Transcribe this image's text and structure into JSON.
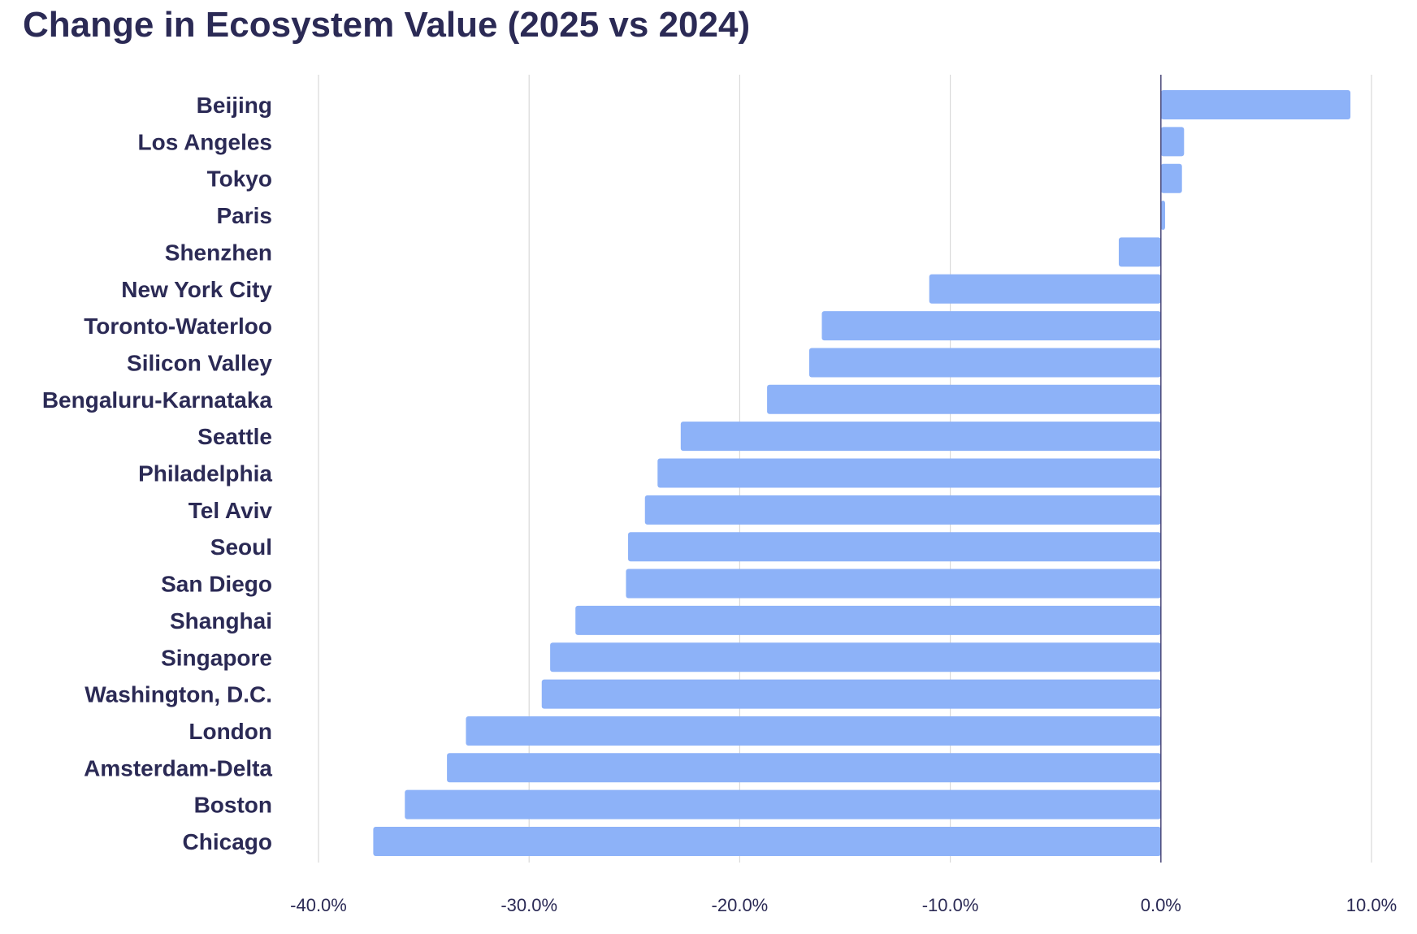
{
  "chart_data": {
    "type": "bar",
    "orientation": "horizontal",
    "title": "Change in Ecosystem Value (2025 vs 2024)",
    "xlabel": "",
    "ylabel": "",
    "xlim": [
      -40,
      10
    ],
    "x_ticks": [
      -40,
      -30,
      -20,
      -10,
      0,
      10
    ],
    "x_tick_labels": [
      "-40.0%",
      "-30.0%",
      "-20.0%",
      "-10.0%",
      "0.0%",
      "10.0%"
    ],
    "grid": "vertical",
    "legend": "none",
    "bar_color": "#8db2f8",
    "categories": [
      "Beijing",
      "Los Angeles",
      "Tokyo",
      "Paris",
      "Shenzhen",
      "New York City",
      "Toronto-Waterloo",
      "Silicon Valley",
      "Bengaluru-Karnataka",
      "Seattle",
      "Philadelphia",
      "Tel Aviv",
      "Seoul",
      "San Diego",
      "Shanghai",
      "Singapore",
      "Washington, D.C.",
      "London",
      "Amsterdam-Delta",
      "Boston",
      "Chicago"
    ],
    "values": [
      9.0,
      1.1,
      1.0,
      0.2,
      -2.0,
      -11.0,
      -16.1,
      -16.7,
      -18.7,
      -22.8,
      -23.9,
      -24.5,
      -25.3,
      -25.4,
      -27.8,
      -29.0,
      -29.4,
      -33.0,
      -33.9,
      -35.9,
      -37.4
    ]
  }
}
